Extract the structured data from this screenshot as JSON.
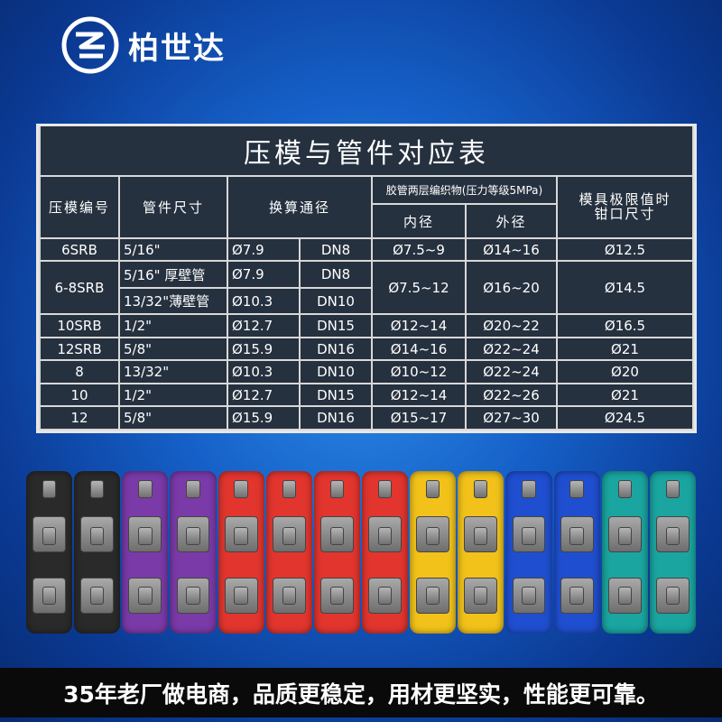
{
  "brand": {
    "name": "柏世达",
    "icon": "brand-s-logo-icon"
  },
  "table": {
    "title": "压模与管件对应表",
    "headers": {
      "die_no": "压模编号",
      "fitting_size": "管件尺寸",
      "equiv_bore": "换算通径",
      "hose": "胶管两层编织物(压力等级5MPa)",
      "inner": "内径",
      "outer": "外径",
      "limit": "模具极限值时\n钳口尺寸"
    },
    "rows": [
      {
        "die": "6SRB",
        "size": "5/16\"",
        "phi": "Ø7.9",
        "dn": "DN8",
        "inner": "Ø7.5~9",
        "outer": "Ø14~16",
        "limit": "Ø12.5"
      },
      {
        "die": "6-8SRB",
        "size": "5/16\" 厚壁管",
        "phi": "Ø7.9",
        "dn": "DN8",
        "inner": "Ø7.5~12",
        "outer": "Ø16~20",
        "limit": "Ø14.5"
      },
      {
        "size": "13/32\"薄壁管",
        "phi": "Ø10.3",
        "dn": "DN10"
      },
      {
        "die": "10SRB",
        "size": "1/2\"",
        "phi": "Ø12.7",
        "dn": "DN15",
        "inner": "Ø12~14",
        "outer": "Ø20~22",
        "limit": "Ø16.5"
      },
      {
        "die": "12SRB",
        "size": "5/8\"",
        "phi": "Ø15.9",
        "dn": "DN16",
        "inner": "Ø14~16",
        "outer": "Ø22~24",
        "limit": "Ø21"
      },
      {
        "die": "8",
        "size": "13/32\"",
        "phi": "Ø10.3",
        "dn": "DN10",
        "inner": "Ø10~12",
        "outer": "Ø22~24",
        "limit": "Ø20"
      },
      {
        "die": "10",
        "size": "1/2\"",
        "phi": "Ø12.7",
        "dn": "DN15",
        "inner": "Ø12~14",
        "outer": "Ø22~26",
        "limit": "Ø21"
      },
      {
        "die": "12",
        "size": "5/8\"",
        "phi": "Ø15.9",
        "dn": "DN16",
        "inner": "Ø15~17",
        "outer": "Ø27~30",
        "limit": "Ø24.5"
      }
    ]
  },
  "product": {
    "die_colors": [
      "#2a2a2a",
      "#2a2a2a",
      "#7a3aa8",
      "#7a3aa8",
      "#e2352e",
      "#e2352e",
      "#e2352e",
      "#e2352e",
      "#f2c21a",
      "#f2c21a",
      "#1f4fd0",
      "#1f4fd0",
      "#1aa5a0",
      "#1aa5a0"
    ]
  },
  "slogan": "35年老厂做电商，品质更稳定，用材更坚实，性能更可靠。"
}
